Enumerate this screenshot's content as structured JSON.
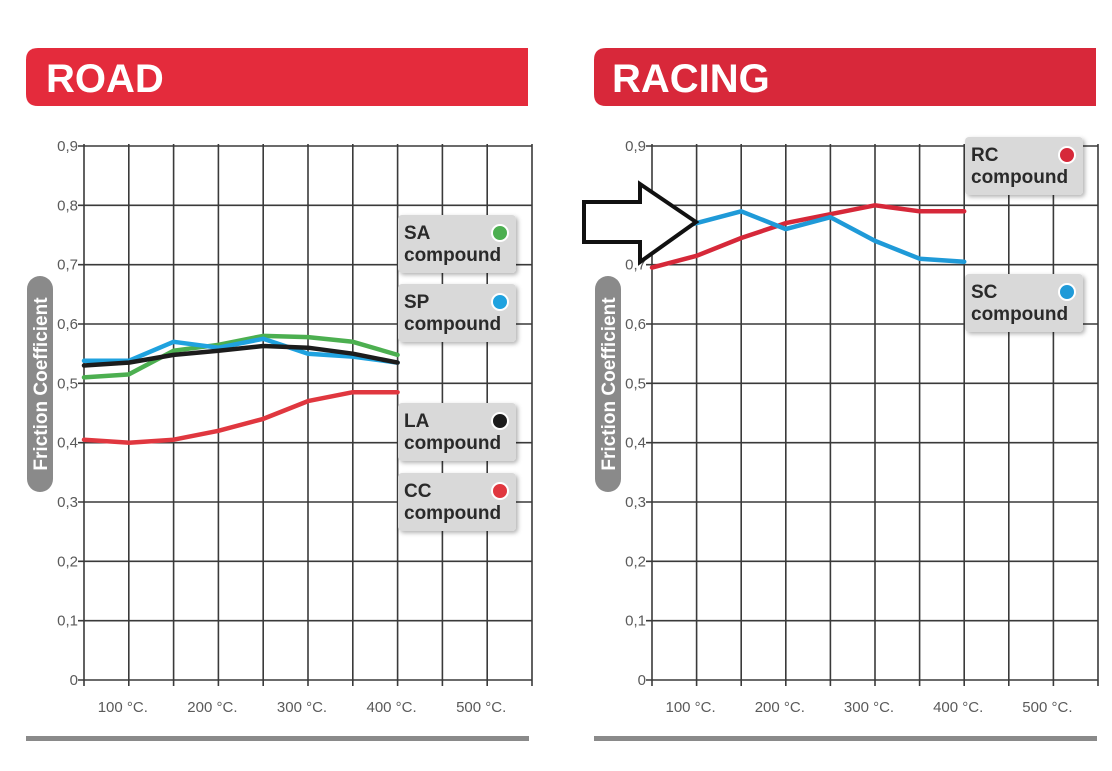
{
  "colors": {
    "banner": "#e42b3c",
    "grid": "#3a3a3a",
    "SA": "#4caf50",
    "SP": "#1fa2df",
    "LA": "#1c1c1c",
    "CC": "#e0373f",
    "RC": "#d62839",
    "SC": "#1f9ad8"
  },
  "chart_data": [
    {
      "type": "line",
      "title": "ROAD",
      "ylabel": "Friction Coefficient",
      "xlabel": "",
      "x_ticks": [
        "100 °C.",
        "200 °C.",
        "300 °C.",
        "400 °C.",
        "500 °C."
      ],
      "y_ticks": [
        "0",
        "0,1",
        "0,2",
        "0,3",
        "0,4",
        "0,5",
        "0,6",
        "0,7",
        "0,8",
        "0,9"
      ],
      "xlim": [
        50,
        550
      ],
      "ylim": [
        0,
        0.9
      ],
      "grid": true,
      "legend_position": "right",
      "series": [
        {
          "name": "SA compound",
          "key": "SA",
          "label1": "SA",
          "label2": "compound",
          "x": [
            50,
            100,
            150,
            200,
            250,
            300,
            350,
            400
          ],
          "y": [
            0.51,
            0.515,
            0.555,
            0.565,
            0.58,
            0.578,
            0.57,
            0.548
          ]
        },
        {
          "name": "SP compound",
          "key": "SP",
          "label1": "SP",
          "label2": "compound",
          "x": [
            50,
            100,
            150,
            200,
            250,
            300,
            350,
            400
          ],
          "y": [
            0.538,
            0.538,
            0.57,
            0.56,
            0.575,
            0.55,
            0.545,
            0.535
          ]
        },
        {
          "name": "LA compound",
          "key": "LA",
          "label1": "LA",
          "label2": "compound",
          "x": [
            50,
            100,
            150,
            200,
            250,
            300,
            350,
            400
          ],
          "y": [
            0.53,
            0.535,
            0.548,
            0.555,
            0.563,
            0.56,
            0.55,
            0.535
          ]
        },
        {
          "name": "CC compound",
          "key": "CC",
          "label1": "CC",
          "label2": "compound",
          "x": [
            50,
            100,
            150,
            200,
            250,
            300,
            350,
            400
          ],
          "y": [
            0.405,
            0.4,
            0.405,
            0.42,
            0.44,
            0.47,
            0.485,
            0.485
          ]
        }
      ]
    },
    {
      "type": "line",
      "title": "RACING",
      "ylabel": "Friction Coefficient",
      "xlabel": "",
      "x_ticks": [
        "100 °C.",
        "200 °C.",
        "300 °C.",
        "400 °C.",
        "500 °C."
      ],
      "y_ticks": [
        "0",
        "0,1",
        "0,2",
        "0,3",
        "0,4",
        "0,5",
        "0,6",
        "0,7",
        "0,8",
        "0,9"
      ],
      "xlim": [
        50,
        550
      ],
      "ylim": [
        0,
        0.9
      ],
      "grid": true,
      "legend_position": "right",
      "series": [
        {
          "name": "RC compound",
          "key": "RC",
          "label1": "RC",
          "label2": "compound",
          "x": [
            50,
            100,
            150,
            200,
            250,
            300,
            350,
            400
          ],
          "y": [
            0.695,
            0.715,
            0.745,
            0.77,
            0.785,
            0.8,
            0.79,
            0.79
          ]
        },
        {
          "name": "SC compound",
          "key": "SC",
          "label1": "SC",
          "label2": "compound",
          "x": [
            50,
            100,
            150,
            200,
            250,
            300,
            350,
            400
          ],
          "y": [
            0.75,
            0.77,
            0.79,
            0.76,
            0.78,
            0.74,
            0.71,
            0.705
          ]
        }
      ]
    }
  ]
}
